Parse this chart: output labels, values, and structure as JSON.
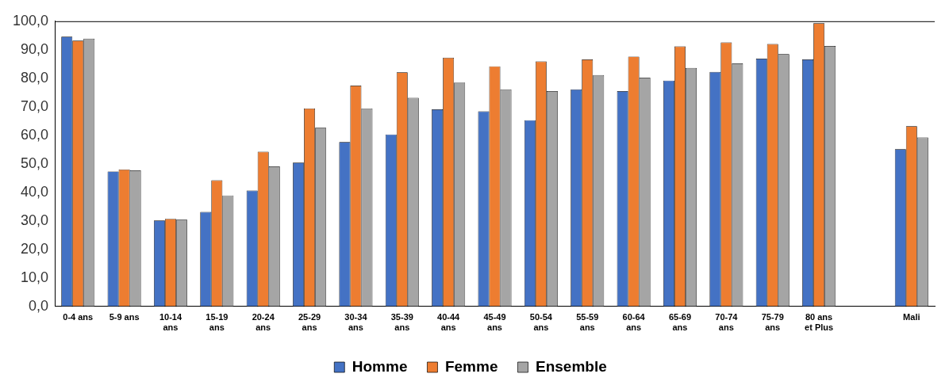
{
  "chart_data": {
    "type": "bar",
    "categories": [
      "0-4 ans",
      "5-9 ans",
      "10-14 ans",
      "15-19 ans",
      "20-24 ans",
      "25-29 ans",
      "30-34 ans",
      "35-39 ans",
      "40-44 ans",
      "45-49 ans",
      "50-54 ans",
      "55-59 ans",
      "60-64 ans",
      "65-69 ans",
      "70-74 ans",
      "75-79 ans",
      "80 ans et Plus",
      null,
      "Mali"
    ],
    "series": [
      {
        "name": "Homme",
        "color": "#4472c4",
        "values": [
          94.6,
          47.3,
          30.1,
          33.1,
          40.6,
          50.4,
          57.6,
          60.3,
          69.1,
          68.4,
          65.3,
          76.1,
          75.5,
          79.2,
          82.2,
          86.9,
          86.6,
          null,
          55.1
        ]
      },
      {
        "name": "Femme",
        "color": "#ed7d31",
        "values": [
          93.2,
          48.0,
          30.7,
          44.2,
          54.2,
          69.4,
          77.4,
          82.1,
          87.2,
          84.2,
          85.9,
          86.6,
          87.6,
          91.2,
          92.6,
          92.0,
          99.3,
          null,
          63.2
        ]
      },
      {
        "name": "Ensemble",
        "color": "#a5a5a5",
        "values": [
          93.9,
          47.7,
          30.4,
          38.9,
          49.1,
          62.6,
          69.4,
          73.1,
          78.5,
          76.1,
          75.5,
          81.1,
          80.2,
          83.6,
          85.2,
          88.5,
          91.3,
          null,
          59.2
        ]
      }
    ],
    "ylim": [
      0,
      100
    ],
    "yticks": [
      {
        "value": 0,
        "label": "0,0"
      },
      {
        "value": 10,
        "label": "10,0"
      },
      {
        "value": 20,
        "label": "20,0"
      },
      {
        "value": 30,
        "label": "30,0"
      },
      {
        "value": 40,
        "label": "40,0"
      },
      {
        "value": 50,
        "label": "50,0"
      },
      {
        "value": 60,
        "label": "60,0"
      },
      {
        "value": 70,
        "label": "70,0"
      },
      {
        "value": 80,
        "label": "80,0"
      },
      {
        "value": 90,
        "label": "90,0"
      },
      {
        "value": 100,
        "label": "100,0"
      }
    ],
    "grid": false,
    "legend": "bottom"
  }
}
